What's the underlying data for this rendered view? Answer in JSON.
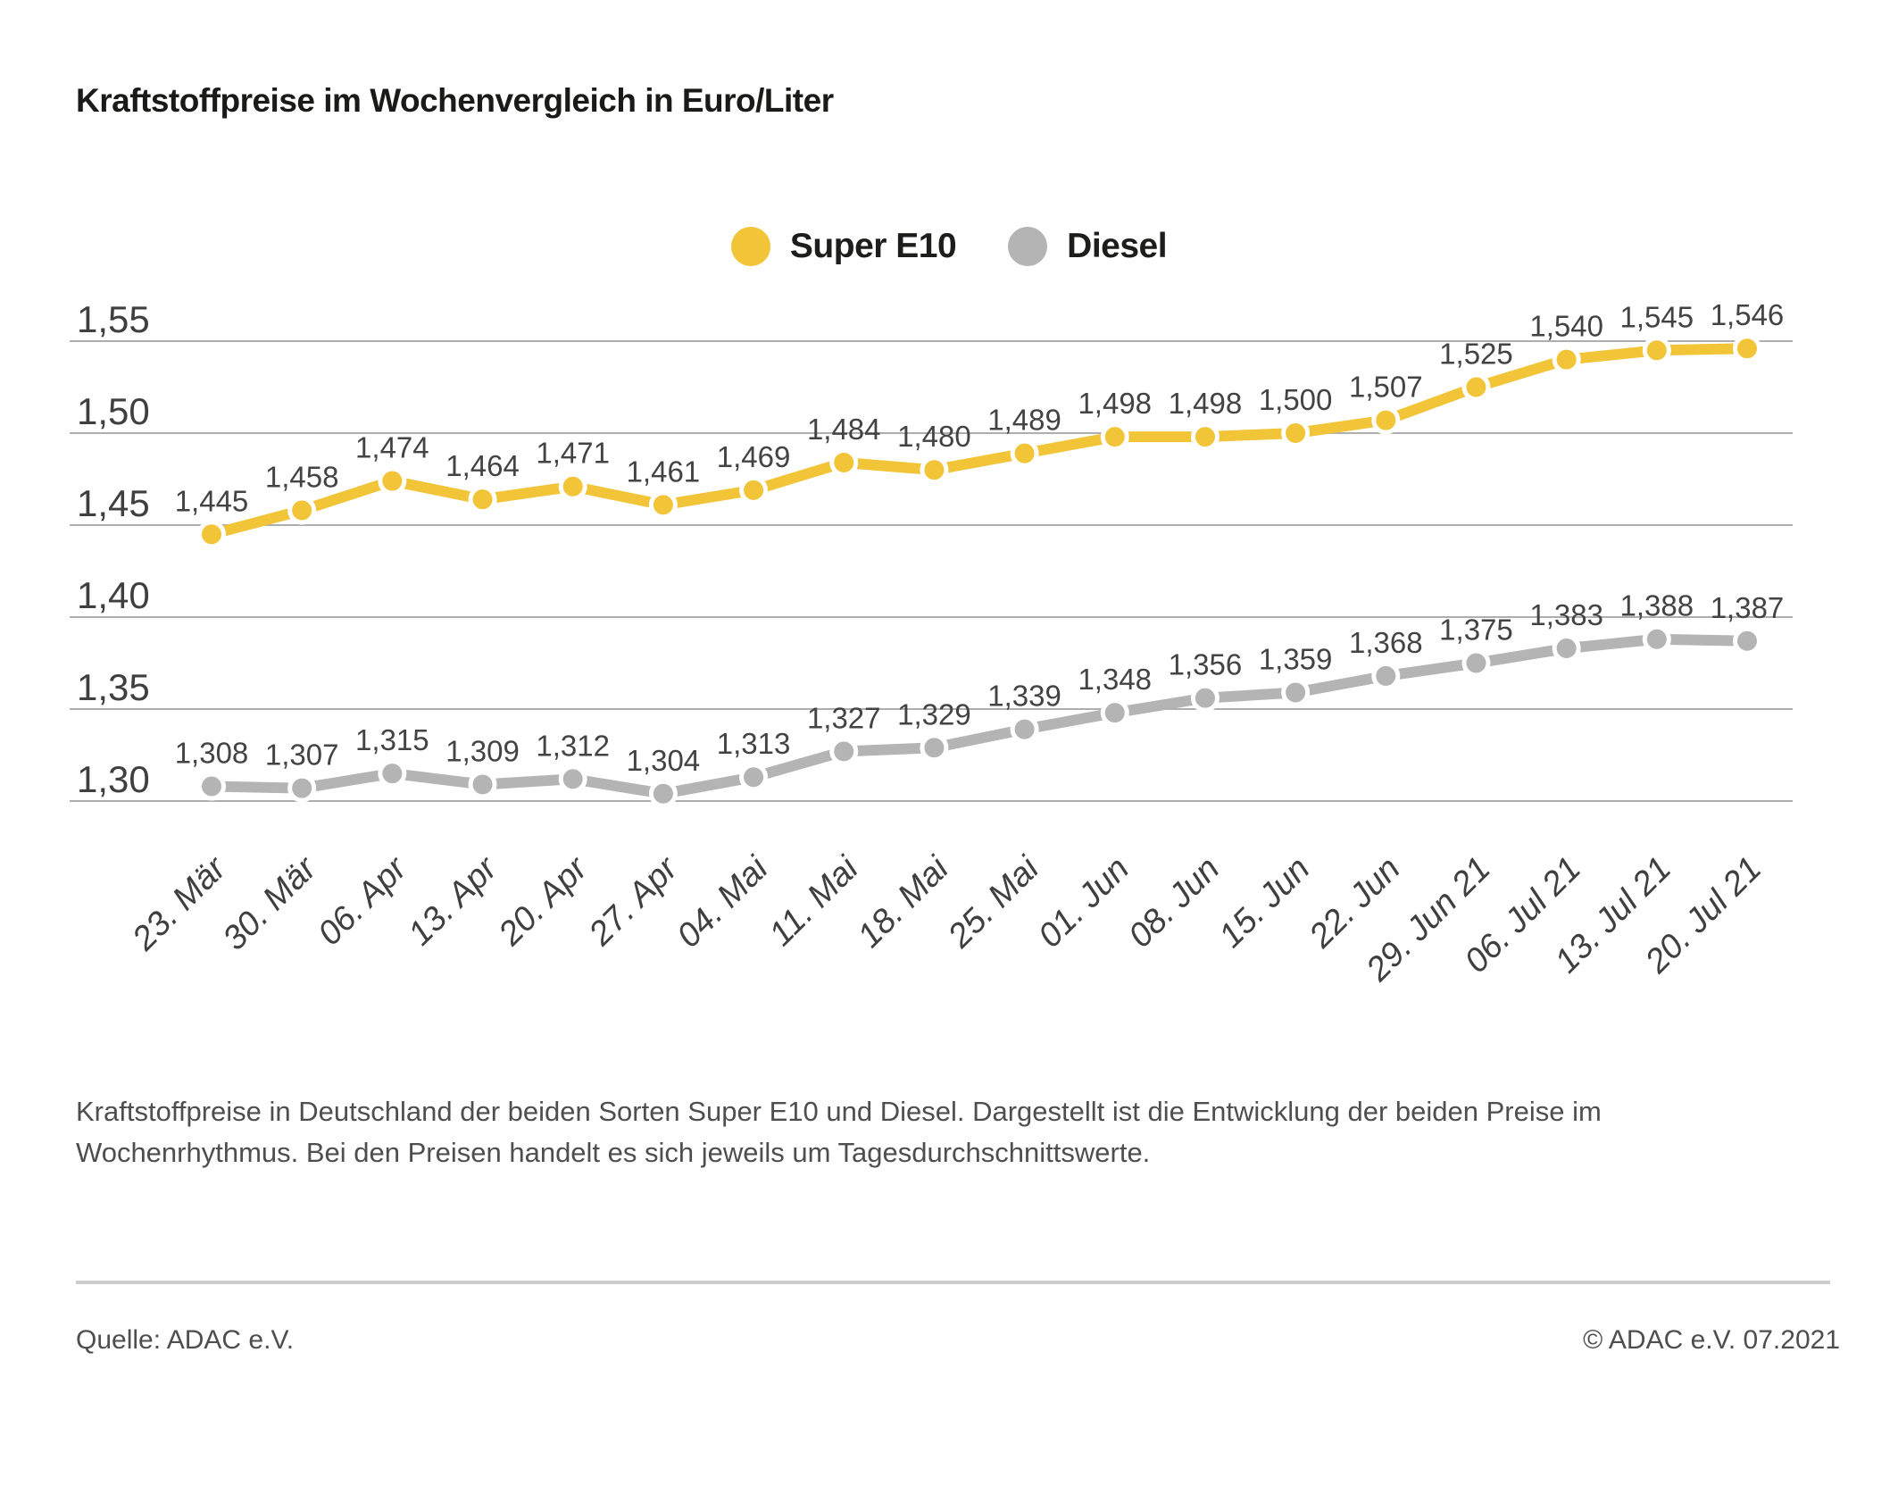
{
  "title": "Kraftstoffpreise im Wochenvergleich in Euro/Liter",
  "description": "Kraftstoffpreise in Deutschland der beiden Sorten Super E10 und Diesel. Dargestellt ist die Entwicklung der beiden Preise im Wochenrhythmus. Bei den Preisen handelt es sich jeweils um Tagesdurchschnittswerte.",
  "source": "Quelle: ADAC e.V.",
  "copyright": "© ADAC e.V. 07.2021",
  "colors": {
    "super_e10": "#f2c437",
    "diesel": "#b4b4b4",
    "gridline": "#aeaeae",
    "axis_text": "#3f3f3f",
    "data_label_text": "#434343",
    "title_text": "#1a1a18",
    "footer_text": "#4e4e4e"
  },
  "chart_data": {
    "type": "line",
    "title": "Kraftstoffpreise im Wochenvergleich in Euro/Liter",
    "xlabel": "",
    "ylabel": "Euro/Liter",
    "grid": true,
    "legend_position": "top-center",
    "ylim": [
      1.3,
      1.55
    ],
    "yticks": {
      "values": [
        1.55,
        1.5,
        1.45,
        1.4,
        1.35,
        1.3
      ],
      "labels": [
        "1,55",
        "1,50",
        "1,45",
        "1,40",
        "1,35",
        "1,30"
      ]
    },
    "x": [
      "23. Mär",
      "30. Mär",
      "06. Apr",
      "13. Apr",
      "20. Apr",
      "27. Apr",
      "04. Mai",
      "11. Mai",
      "18. Mai",
      "25. Mai",
      "01. Jun",
      "08. Jun",
      "15. Jun",
      "22. Jun",
      "29. Jun 21",
      "06. Jul 21",
      "13. Jul 21",
      "20. Jul 21"
    ],
    "series": [
      {
        "name": "Super E10",
        "color": "#f2c437",
        "values": [
          1.445,
          1.458,
          1.474,
          1.464,
          1.471,
          1.461,
          1.469,
          1.484,
          1.48,
          1.489,
          1.498,
          1.498,
          1.5,
          1.507,
          1.525,
          1.54,
          1.545,
          1.546
        ],
        "labels": [
          "1,445",
          "1,458",
          "1,474",
          "1,464",
          "1,471",
          "1,461",
          "1,469",
          "1,484",
          "1,480",
          "1,489",
          "1,498",
          "1,498",
          "1,500",
          "1,507",
          "1,525",
          "1,540",
          "1,545",
          "1,546"
        ]
      },
      {
        "name": "Diesel",
        "color": "#b4b4b4",
        "values": [
          1.308,
          1.307,
          1.315,
          1.309,
          1.312,
          1.304,
          1.313,
          1.327,
          1.329,
          1.339,
          1.348,
          1.356,
          1.359,
          1.368,
          1.375,
          1.383,
          1.388,
          1.387
        ],
        "labels": [
          "1,308",
          "1,307",
          "1,315",
          "1,309",
          "1,312",
          "1,304",
          "1,313",
          "1,327",
          "1,329",
          "1,339",
          "1,348",
          "1,356",
          "1,359",
          "1,368",
          "1,375",
          "1,383",
          "1,388",
          "1,387"
        ]
      }
    ]
  }
}
